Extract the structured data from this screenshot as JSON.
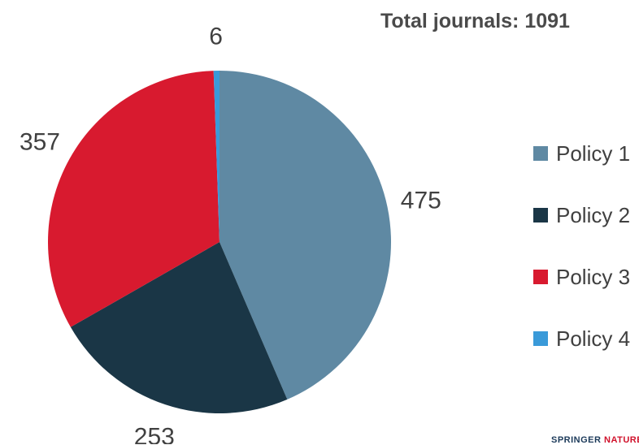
{
  "header": {
    "total_text": "Total journals: 1091"
  },
  "chart_data": {
    "type": "pie",
    "title": "Total journals: 1091",
    "legend_position": "right",
    "start_angle_deg": 0,
    "direction": "clockwise",
    "categories": [
      "Policy 1",
      "Policy 2",
      "Policy 3",
      "Policy 4"
    ],
    "values": [
      475,
      253,
      357,
      6
    ],
    "data_labels": [
      "475",
      "253",
      "357",
      "6"
    ],
    "colors": [
      "#5f89a3",
      "#1a3646",
      "#d81a2f",
      "#3a9ad9"
    ]
  },
  "brand": {
    "part1": "SPRINGER",
    "part2": " NATURE"
  }
}
